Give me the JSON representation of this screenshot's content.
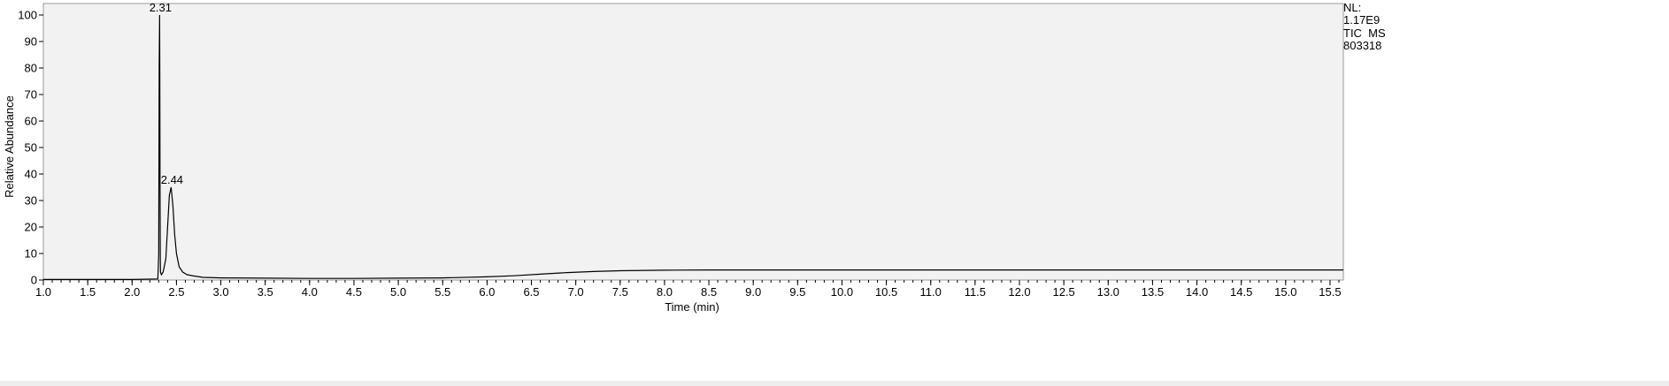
{
  "chart_data": {
    "type": "line",
    "title": "",
    "xlabel": "Time (min)",
    "ylabel": "Relative Abundance",
    "xlim": [
      1.0,
      15.65
    ],
    "ylim": [
      0,
      100
    ],
    "x_ticks": [
      1.0,
      1.5,
      2.0,
      2.5,
      3.0,
      3.5,
      4.0,
      4.5,
      5.0,
      5.5,
      6.0,
      6.5,
      7.0,
      7.5,
      8.0,
      8.5,
      9.0,
      9.5,
      10.0,
      10.5,
      11.0,
      11.5,
      12.0,
      12.5,
      13.0,
      13.5,
      14.0,
      14.5,
      15.0,
      15.5
    ],
    "x_tick_labels": [
      "1.0",
      "1.5",
      "2.0",
      "2.5",
      "3.0",
      "3.5",
      "4.0",
      "4.5",
      "5.0",
      "5.5",
      "6.0",
      "6.5",
      "7.0",
      "7.5",
      "8.0",
      "8.5",
      "9.0",
      "9.5",
      "10.0",
      "10.5",
      "11.0",
      "11.5",
      "12.0",
      "12.5",
      "13.0",
      "13.5",
      "14.0",
      "14.5",
      "15.0",
      "15.5"
    ],
    "y_ticks": [
      0,
      10,
      20,
      30,
      40,
      50,
      60,
      70,
      80,
      90,
      100
    ],
    "y_tick_labels": [
      "0",
      "10",
      "20",
      "30",
      "40",
      "50",
      "60",
      "70",
      "80",
      "90",
      "100"
    ],
    "minor_x_step": 0.1,
    "grid": false,
    "background": "#f2f2f2",
    "line_color": "#000000",
    "series": [
      {
        "x": [
          1.0,
          2.0,
          2.29,
          2.3,
          2.305,
          2.31,
          2.312,
          2.315,
          2.318,
          2.32,
          2.33,
          2.35,
          2.38,
          2.4,
          2.42,
          2.44,
          2.46,
          2.48,
          2.5,
          2.53,
          2.57,
          2.62,
          2.7,
          2.8,
          3.0,
          3.5,
          4.0,
          4.5,
          5.0,
          5.5,
          6.0,
          6.3,
          6.6,
          6.9,
          7.2,
          7.5,
          8.0,
          8.5,
          9.0,
          10.0,
          11.0,
          12.0,
          13.0,
          14.0,
          15.0,
          15.65
        ],
        "y": [
          0.2,
          0.2,
          0.4,
          10,
          80,
          100,
          80,
          36,
          8,
          3,
          2,
          3,
          8,
          20,
          32,
          35,
          28,
          17,
          10,
          5,
          3,
          2,
          1.5,
          1,
          0.8,
          0.7,
          0.6,
          0.6,
          0.7,
          0.8,
          1.2,
          1.6,
          2.2,
          2.8,
          3.2,
          3.5,
          3.7,
          3.8,
          3.8,
          3.8,
          3.8,
          3.8,
          3.8,
          3.8,
          3.8,
          3.8
        ]
      }
    ],
    "annotations": [
      {
        "text": "2.31",
        "x": 2.31,
        "y": 100
      },
      {
        "text": "2.44",
        "x": 2.44,
        "y": 35
      }
    ]
  },
  "info": {
    "nl_label": "NL:",
    "nl_value": "1.17E9",
    "trace": "TIC  MS",
    "file_id": "803318"
  }
}
